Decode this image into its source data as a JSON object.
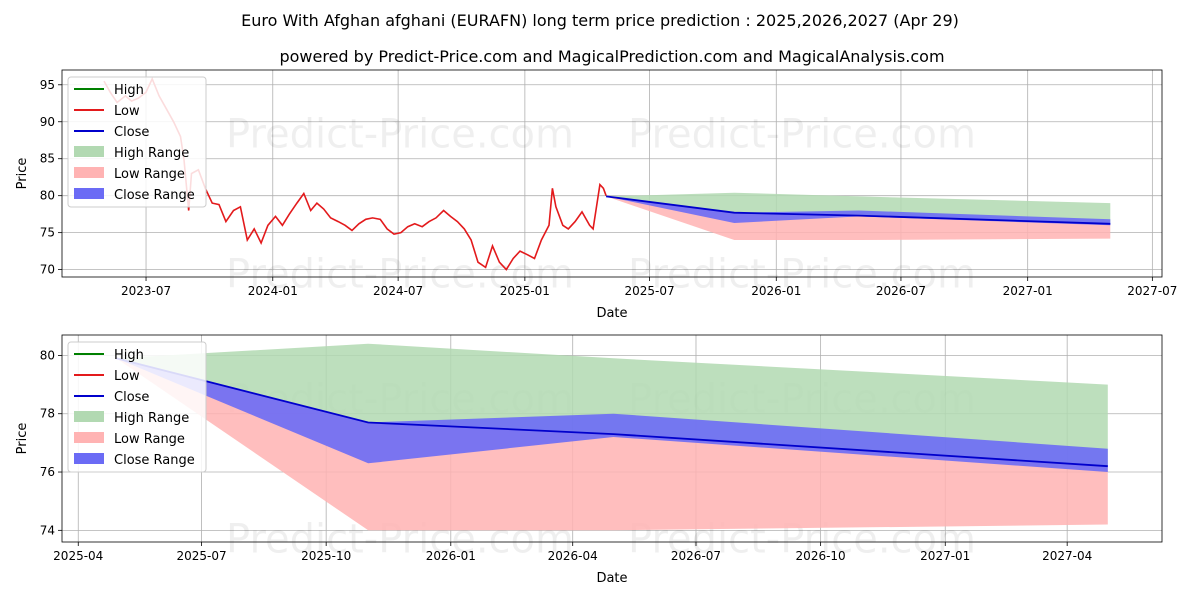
{
  "title": "Euro With Afghan afghani (EURAFN) long term price prediction : 2025,2026,2027 (Apr 29)",
  "subtitle": "powered by Predict-Price.com and MagicalPrediction.com and MagicalAnalysis.com",
  "watermark": "Predict-Price.com",
  "colors": {
    "high": "#008000",
    "low": "#e31a1c",
    "close": "#0000cc",
    "high_range": "#b2d9b2",
    "low_range": "#ffb3b3",
    "close_range": "#6b6bf5"
  },
  "legend": [
    "High",
    "Low",
    "Close",
    "High Range",
    "Low Range",
    "Close Range"
  ],
  "chart_data": [
    {
      "type": "line",
      "xlabel": "Date",
      "ylabel": "Price",
      "xlim": [
        "2023-03-01",
        "2027-07-15"
      ],
      "ylim": [
        69,
        97
      ],
      "x_ticks": [
        "2023-07",
        "2024-01",
        "2024-07",
        "2025-01",
        "2025-07",
        "2026-01",
        "2026-07",
        "2027-01",
        "2027-07"
      ],
      "y_ticks": [
        70,
        75,
        80,
        85,
        90,
        95
      ],
      "grid": true,
      "legend_position": "top-left",
      "history": {
        "name": "Low",
        "points": [
          [
            "2023-05-01",
            95.5
          ],
          [
            "2023-05-10",
            94.0
          ],
          [
            "2023-05-20",
            92.6
          ],
          [
            "2023-06-01",
            93.5
          ],
          [
            "2023-06-10",
            92.8
          ],
          [
            "2023-06-20",
            93.2
          ],
          [
            "2023-07-01",
            94.0
          ],
          [
            "2023-07-10",
            95.8
          ],
          [
            "2023-07-20",
            93.5
          ],
          [
            "2023-08-01",
            91.5
          ],
          [
            "2023-08-10",
            90.0
          ],
          [
            "2023-08-20",
            88.0
          ],
          [
            "2023-08-25",
            85.0
          ],
          [
            "2023-09-01",
            78.0
          ],
          [
            "2023-09-05",
            83.0
          ],
          [
            "2023-09-15",
            83.5
          ],
          [
            "2023-09-25",
            81.0
          ],
          [
            "2023-10-05",
            79.0
          ],
          [
            "2023-10-15",
            78.8
          ],
          [
            "2023-10-25",
            76.5
          ],
          [
            "2023-11-05",
            78.0
          ],
          [
            "2023-11-15",
            78.5
          ],
          [
            "2023-11-25",
            74.0
          ],
          [
            "2023-12-05",
            75.5
          ],
          [
            "2023-12-15",
            73.6
          ],
          [
            "2023-12-25",
            76.0
          ],
          [
            "2024-01-05",
            77.2
          ],
          [
            "2024-01-15",
            76.0
          ],
          [
            "2024-01-25",
            77.5
          ],
          [
            "2024-02-05",
            79.0
          ],
          [
            "2024-02-15",
            80.3
          ],
          [
            "2024-02-25",
            78.0
          ],
          [
            "2024-03-05",
            79.0
          ],
          [
            "2024-03-15",
            78.2
          ],
          [
            "2024-03-25",
            77.0
          ],
          [
            "2024-04-05",
            76.5
          ],
          [
            "2024-04-15",
            76.0
          ],
          [
            "2024-04-25",
            75.3
          ],
          [
            "2024-05-05",
            76.2
          ],
          [
            "2024-05-15",
            76.8
          ],
          [
            "2024-05-25",
            77.0
          ],
          [
            "2024-06-05",
            76.8
          ],
          [
            "2024-06-15",
            75.5
          ],
          [
            "2024-06-25",
            74.8
          ],
          [
            "2024-07-05",
            75.0
          ],
          [
            "2024-07-15",
            75.8
          ],
          [
            "2024-07-25",
            76.2
          ],
          [
            "2024-08-05",
            75.8
          ],
          [
            "2024-08-15",
            76.5
          ],
          [
            "2024-08-25",
            77.0
          ],
          [
            "2024-09-05",
            78.0
          ],
          [
            "2024-09-15",
            77.2
          ],
          [
            "2024-09-25",
            76.5
          ],
          [
            "2024-10-05",
            75.5
          ],
          [
            "2024-10-15",
            74.0
          ],
          [
            "2024-10-25",
            71.0
          ],
          [
            "2024-11-05",
            70.3
          ],
          [
            "2024-11-15",
            73.2
          ],
          [
            "2024-11-25",
            71.0
          ],
          [
            "2024-12-05",
            70.0
          ],
          [
            "2024-12-15",
            71.5
          ],
          [
            "2024-12-25",
            72.5
          ],
          [
            "2025-01-05",
            72.0
          ],
          [
            "2025-01-15",
            71.5
          ],
          [
            "2025-01-25",
            74.0
          ],
          [
            "2025-02-05",
            76.0
          ],
          [
            "2025-02-10",
            81.0
          ],
          [
            "2025-02-15",
            78.5
          ],
          [
            "2025-02-25",
            76.0
          ],
          [
            "2025-03-05",
            75.5
          ],
          [
            "2025-03-15",
            76.5
          ],
          [
            "2025-03-25",
            77.8
          ],
          [
            "2025-04-05",
            76.0
          ],
          [
            "2025-04-10",
            75.5
          ],
          [
            "2025-04-15",
            78.5
          ],
          [
            "2025-04-20",
            81.5
          ],
          [
            "2025-04-25",
            81.0
          ],
          [
            "2025-04-29",
            80.0
          ]
        ]
      },
      "forecast": {
        "x": [
          "2025-04-29",
          "2025-11-01",
          "2026-05-01",
          "2027-05-01"
        ],
        "close": [
          79.9,
          77.7,
          77.3,
          76.2
        ],
        "high_range": {
          "upper": [
            79.9,
            80.4,
            79.9,
            79.0
          ],
          "lower": [
            79.9,
            77.7,
            77.3,
            76.2
          ]
        },
        "low_range": {
          "upper": [
            79.9,
            77.7,
            77.3,
            76.2
          ],
          "lower": [
            79.9,
            74.0,
            74.0,
            74.2
          ]
        },
        "close_range": {
          "upper": [
            79.9,
            77.7,
            78.0,
            76.8
          ],
          "lower": [
            79.9,
            76.3,
            77.2,
            76.0
          ]
        }
      }
    },
    {
      "type": "line",
      "xlabel": "Date",
      "ylabel": "Price",
      "xlim": [
        "2025-03-20",
        "2027-06-10"
      ],
      "ylim": [
        73.6,
        80.7
      ],
      "x_ticks": [
        "2025-04",
        "2025-07",
        "2025-10",
        "2026-01",
        "2026-04",
        "2026-07",
        "2026-10",
        "2027-01",
        "2027-04"
      ],
      "y_ticks": [
        74,
        76,
        78,
        80
      ],
      "grid": true,
      "legend_position": "top-left",
      "forecast": {
        "x": [
          "2025-04-29",
          "2025-11-01",
          "2026-05-01",
          "2027-05-01"
        ],
        "close": [
          79.9,
          77.7,
          77.3,
          76.2
        ],
        "high_range": {
          "upper": [
            79.9,
            80.4,
            79.9,
            79.0
          ],
          "lower": [
            79.9,
            77.7,
            77.3,
            76.2
          ]
        },
        "low_range": {
          "upper": [
            79.9,
            77.7,
            77.3,
            76.2
          ],
          "lower": [
            79.9,
            74.0,
            74.0,
            74.2
          ]
        },
        "close_range": {
          "upper": [
            79.9,
            77.7,
            78.0,
            76.8
          ],
          "lower": [
            79.9,
            76.3,
            77.2,
            76.0
          ]
        }
      }
    }
  ]
}
